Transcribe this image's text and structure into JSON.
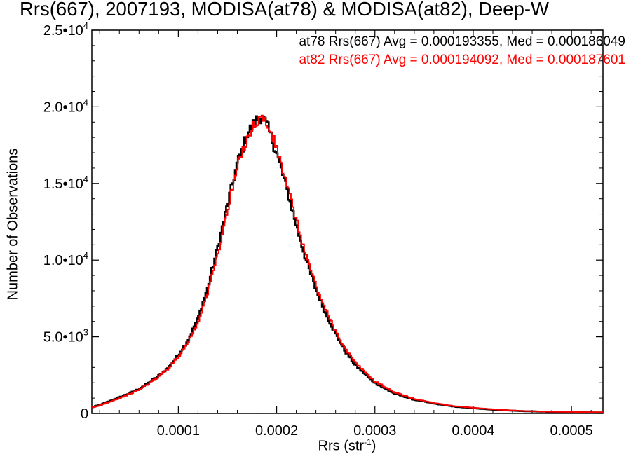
{
  "chart_data": {
    "type": "line",
    "title": "Rrs(667), 2007193, MODISA(at78) & MODISA(at82), Deep-W",
    "xlabel_main": "Rrs (str",
    "xlabel_sup": "-1",
    "xlabel_close": ")",
    "ylabel": "Number of Observations",
    "xlim": [
      1.2e-05,
      0.000532
    ],
    "ylim": [
      0,
      25000
    ],
    "xticks": [
      {
        "value": 0.0001,
        "label": "0.0001"
      },
      {
        "value": 0.0002,
        "label": "0.0002"
      },
      {
        "value": 0.0003,
        "label": "0.0003"
      },
      {
        "value": 0.0004,
        "label": "0.0004"
      },
      {
        "value": 0.0005,
        "label": "0.0005"
      }
    ],
    "yticks": [
      {
        "value": 0,
        "label": "0"
      },
      {
        "value": 5000,
        "mant": "5.0",
        "exp": "3"
      },
      {
        "value": 10000,
        "mant": "1.0",
        "exp": "4"
      },
      {
        "value": 15000,
        "mant": "1.5",
        "exp": "4"
      },
      {
        "value": 20000,
        "mant": "2.0",
        "exp": "4"
      },
      {
        "value": 25000,
        "mant": "2.5",
        "exp": "4"
      }
    ],
    "grid": false,
    "legend_position": "top-right",
    "series": [
      {
        "name": "at78 Rrs(667) Avg = 0.000193355, Med = 0.000186049",
        "color": "#000000",
        "x": [
          1.2e-05,
          2e-05,
          3e-05,
          4e-05,
          5e-05,
          6e-05,
          7e-05,
          8e-05,
          9e-05,
          0.0001,
          0.00011,
          0.00012,
          0.00013,
          0.00014,
          0.00015,
          0.00016,
          0.00017,
          0.00018,
          0.000185,
          0.00019,
          0.0002,
          0.00021,
          0.00022,
          0.00023,
          0.00024,
          0.00025,
          0.00026,
          0.00027,
          0.00028,
          0.0003,
          0.00032,
          0.00034,
          0.00036,
          0.00038,
          0.0004,
          0.00042,
          0.00045,
          0.00048,
          0.000532
        ],
        "y": [
          400,
          550,
          800,
          1050,
          1300,
          1600,
          2000,
          2450,
          3000,
          3800,
          4800,
          6200,
          8200,
          10800,
          13600,
          16300,
          18200,
          19200,
          19400,
          18800,
          17000,
          14700,
          12300,
          10000,
          8100,
          6500,
          5200,
          4050,
          3150,
          2000,
          1300,
          900,
          650,
          450,
          350,
          250,
          150,
          100,
          60
        ]
      },
      {
        "name": "at82 Rrs(667) Avg = 0.000194092, Med = 0.000187601",
        "color": "#ff0000",
        "x": [
          1.2e-05,
          2e-05,
          3e-05,
          4e-05,
          5e-05,
          6e-05,
          7e-05,
          8e-05,
          9e-05,
          0.0001,
          0.00011,
          0.00012,
          0.00013,
          0.00014,
          0.00015,
          0.00016,
          0.00017,
          0.00018,
          0.000185,
          0.00019,
          0.0002,
          0.00021,
          0.00022,
          0.00023,
          0.00024,
          0.00025,
          0.00026,
          0.00027,
          0.00028,
          0.0003,
          0.00032,
          0.00034,
          0.00036,
          0.00038,
          0.0004,
          0.00042,
          0.00045,
          0.00048,
          0.000532
        ],
        "y": [
          380,
          520,
          760,
          1000,
          1250,
          1550,
          1950,
          2400,
          2950,
          3700,
          4650,
          5950,
          7900,
          10400,
          13200,
          16000,
          18000,
          19100,
          19300,
          18900,
          17300,
          15000,
          12600,
          10300,
          8350,
          6700,
          5400,
          4200,
          3300,
          2100,
          1380,
          950,
          690,
          480,
          370,
          270,
          160,
          110,
          70
        ]
      }
    ]
  }
}
